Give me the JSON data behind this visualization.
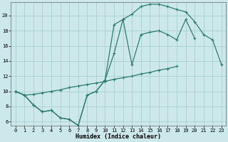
{
  "xlabel": "Humidex (Indice chaleur)",
  "bg_color": "#cce8ea",
  "line_color": "#2d7b6e",
  "grid_color": "#aacfd2",
  "line_straight_x": [
    0,
    1,
    2,
    3,
    4,
    5,
    6,
    7,
    8,
    9,
    10,
    11,
    12,
    13,
    14,
    15,
    16,
    17,
    18,
    19,
    20,
    21,
    22,
    23
  ],
  "line_straight_y": [
    10.0,
    9.5,
    9.6,
    9.8,
    10.0,
    10.2,
    10.5,
    10.7,
    10.9,
    11.1,
    11.3,
    11.6,
    11.8,
    12.0,
    12.3,
    12.5,
    12.8,
    13.0,
    13.3,
    null,
    null,
    null,
    null,
    null
  ],
  "line_mid_x": [
    0,
    1,
    2,
    3,
    4,
    5,
    6,
    7,
    8,
    9,
    10,
    11,
    12,
    13,
    14,
    15,
    16,
    17,
    18,
    19,
    20,
    21,
    22,
    23
  ],
  "line_mid_y": [
    10.0,
    9.5,
    8.2,
    7.3,
    7.5,
    6.5,
    6.3,
    5.5,
    9.5,
    10.0,
    11.5,
    15.0,
    19.5,
    13.5,
    17.5,
    17.8,
    18.0,
    17.5,
    16.8,
    19.5,
    17.0,
    null,
    null,
    null
  ],
  "line_top_x": [
    0,
    1,
    2,
    3,
    4,
    5,
    6,
    7,
    8,
    9,
    10,
    11,
    12,
    13,
    14,
    15,
    16,
    17,
    18,
    19,
    20,
    21,
    22,
    23
  ],
  "line_top_y": [
    10.0,
    9.5,
    8.2,
    7.3,
    7.5,
    6.5,
    6.3,
    5.5,
    9.5,
    10.0,
    11.5,
    18.8,
    19.5,
    20.2,
    21.2,
    21.5,
    21.5,
    21.2,
    20.8,
    20.5,
    19.2,
    17.5,
    16.8,
    13.5
  ],
  "ylim": [
    5.5,
    21.8
  ],
  "xlim": [
    -0.5,
    23.5
  ],
  "yticks": [
    6,
    8,
    10,
    12,
    14,
    16,
    18,
    20
  ],
  "xticks": [
    0,
    1,
    2,
    3,
    4,
    5,
    6,
    7,
    8,
    9,
    10,
    11,
    12,
    13,
    14,
    15,
    16,
    17,
    18,
    19,
    20,
    21,
    22,
    23
  ]
}
